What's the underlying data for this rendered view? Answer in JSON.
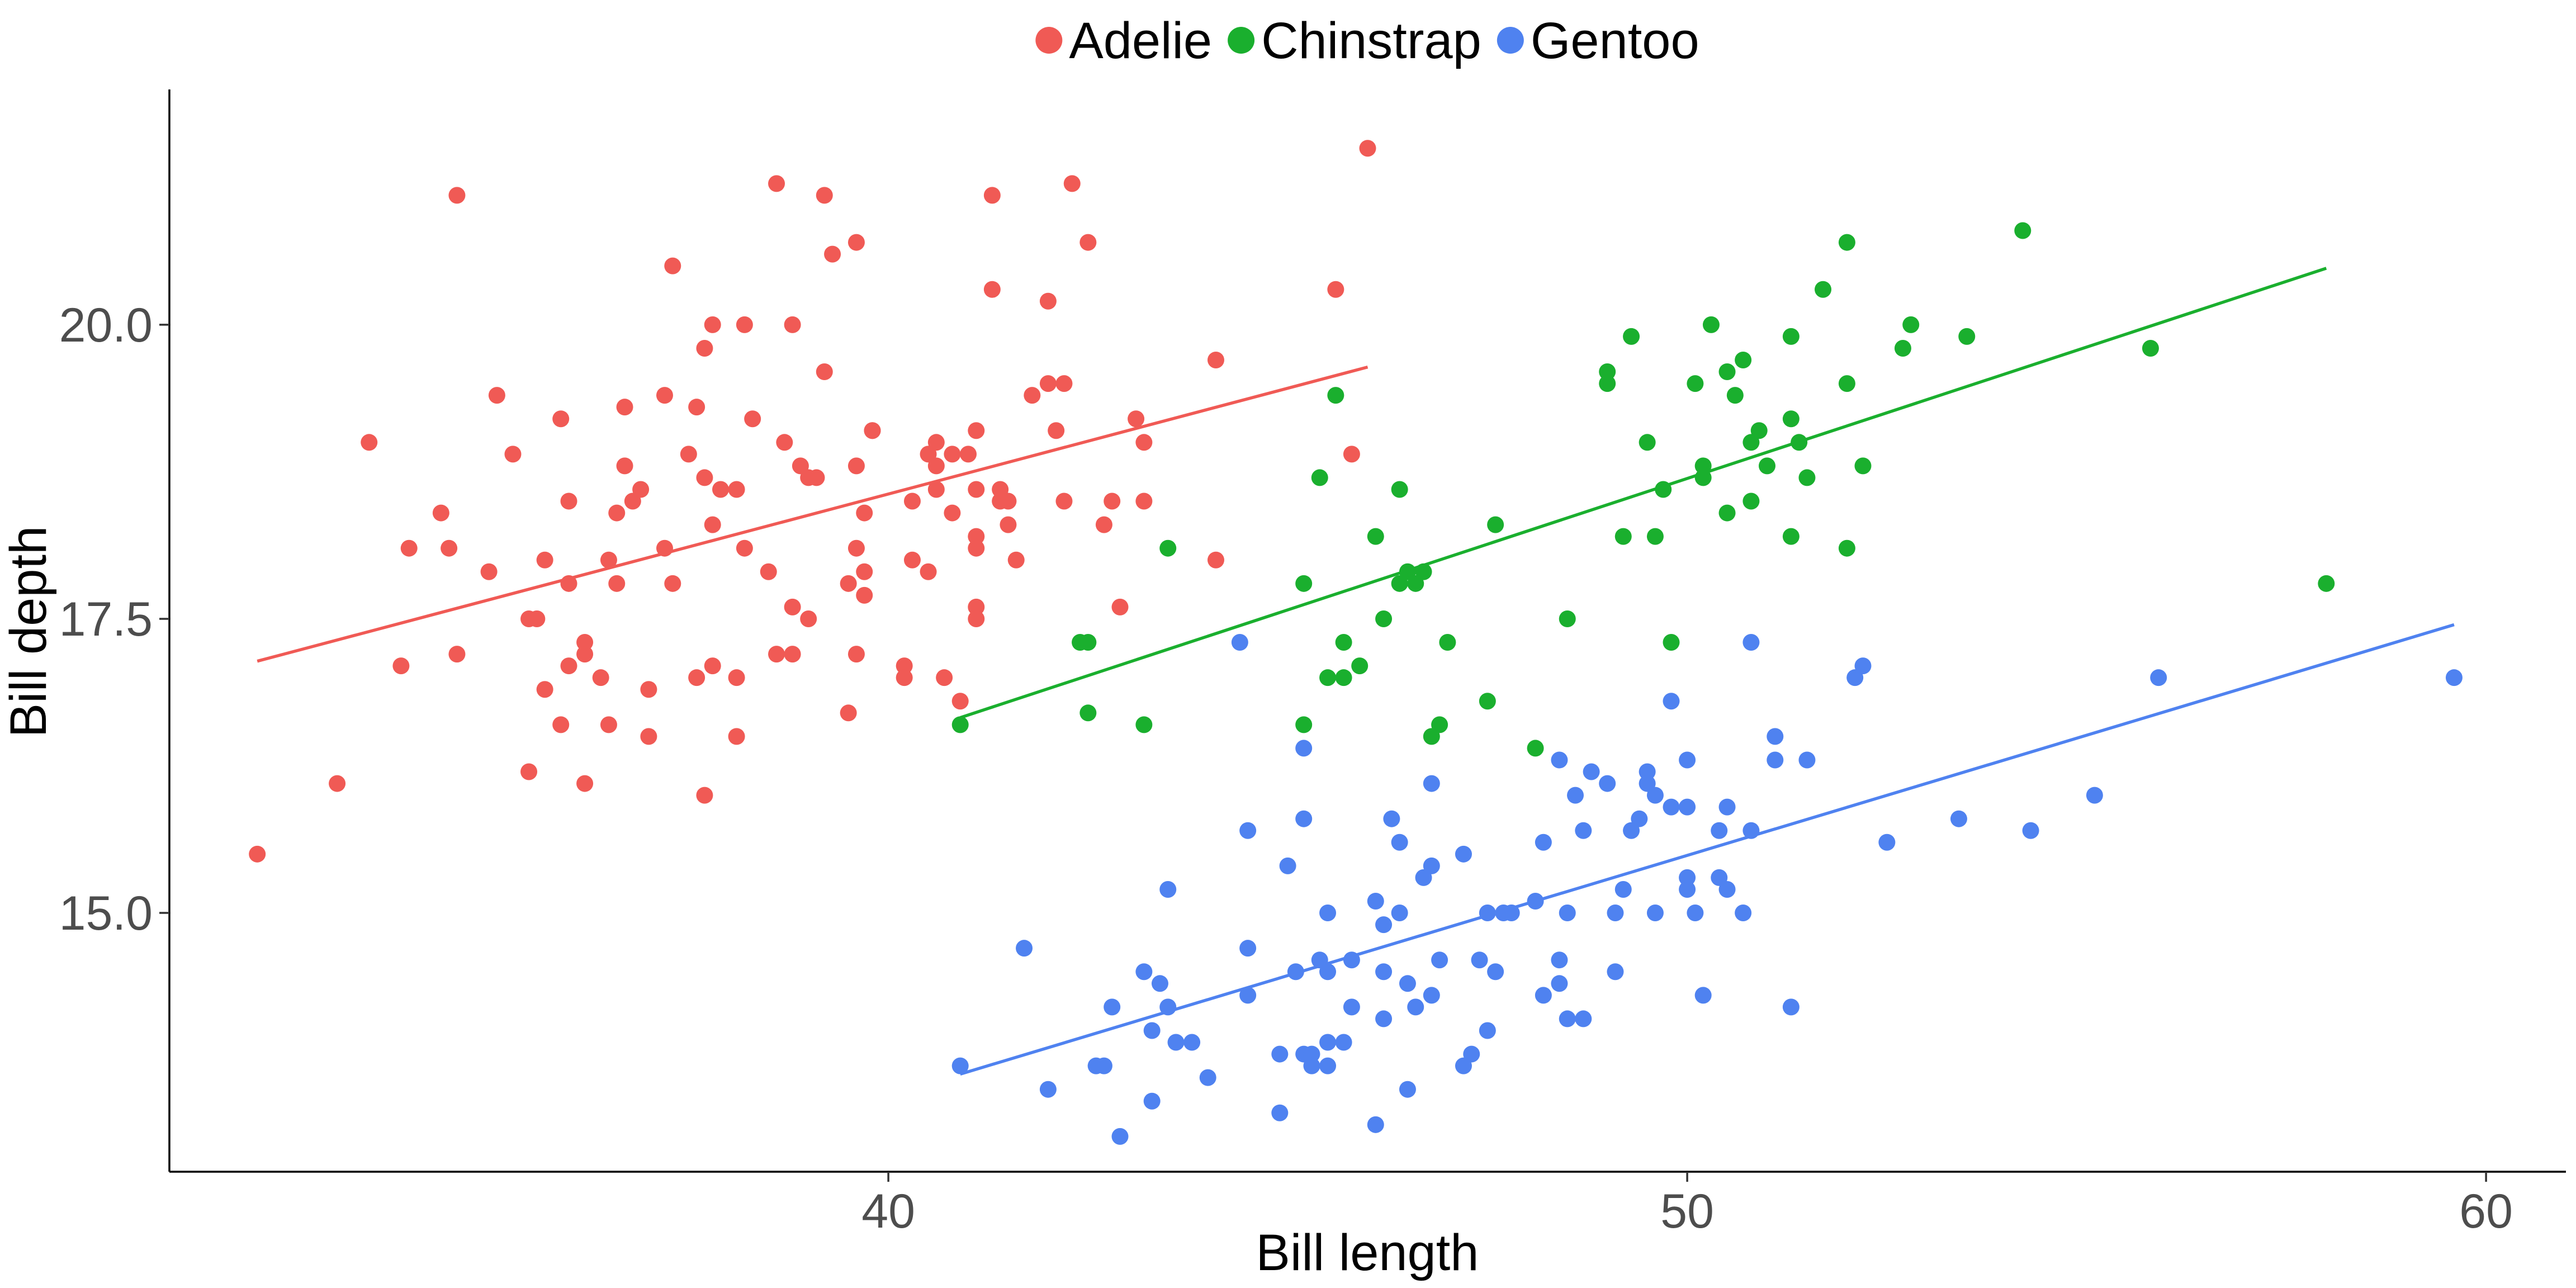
{
  "chart_data": {
    "type": "scatter",
    "title": "",
    "xlabel": "Bill length",
    "ylabel": "Bill depth",
    "xlim": [
      31.0,
      61.0
    ],
    "ylim": [
      12.8,
      22.0
    ],
    "xticks": [
      40,
      50,
      60
    ],
    "yticks": [
      15.0,
      17.5,
      20.0
    ],
    "xtick_labels": [
      "40",
      "50",
      "60"
    ],
    "ytick_labels": [
      "15.0",
      "17.5",
      "20.0"
    ],
    "grid": false,
    "legend_position": "top",
    "series": [
      {
        "name": "Adelie",
        "color": "#F05A55",
        "points": [
          [
            32.1,
            15.5
          ],
          [
            33.1,
            16.1
          ],
          [
            33.5,
            19.0
          ],
          [
            33.9,
            17.1
          ],
          [
            34.0,
            18.1
          ],
          [
            34.4,
            18.4
          ],
          [
            34.5,
            18.1
          ],
          [
            34.6,
            21.1
          ],
          [
            34.6,
            17.2
          ],
          [
            35.0,
            17.9
          ],
          [
            35.1,
            19.4
          ],
          [
            35.3,
            18.9
          ],
          [
            35.5,
            16.2
          ],
          [
            35.5,
            17.5
          ],
          [
            35.6,
            17.5
          ],
          [
            35.7,
            18.0
          ],
          [
            35.7,
            16.9
          ],
          [
            35.9,
            16.6
          ],
          [
            35.9,
            19.2
          ],
          [
            36.0,
            17.1
          ],
          [
            36.0,
            17.8
          ],
          [
            36.0,
            18.5
          ],
          [
            36.2,
            17.2
          ],
          [
            36.2,
            16.1
          ],
          [
            36.2,
            17.3
          ],
          [
            36.4,
            17.0
          ],
          [
            36.5,
            18.0
          ],
          [
            36.5,
            16.6
          ],
          [
            36.6,
            17.8
          ],
          [
            36.6,
            18.4
          ],
          [
            36.7,
            19.3
          ],
          [
            36.7,
            18.8
          ],
          [
            36.8,
            18.5
          ],
          [
            36.9,
            18.6
          ],
          [
            37.0,
            16.9
          ],
          [
            37.0,
            16.5
          ],
          [
            37.2,
            18.1
          ],
          [
            37.2,
            19.4
          ],
          [
            37.3,
            20.5
          ],
          [
            37.3,
            17.8
          ],
          [
            37.5,
            18.9
          ],
          [
            37.6,
            19.3
          ],
          [
            37.6,
            17.0
          ],
          [
            37.7,
            18.7
          ],
          [
            37.7,
            16.0
          ],
          [
            37.7,
            19.8
          ],
          [
            37.8,
            20.0
          ],
          [
            37.8,
            17.1
          ],
          [
            37.8,
            18.3
          ],
          [
            37.9,
            18.6
          ],
          [
            38.1,
            18.6
          ],
          [
            38.1,
            17.0
          ],
          [
            38.1,
            16.5
          ],
          [
            38.2,
            18.1
          ],
          [
            38.2,
            20.0
          ],
          [
            38.3,
            19.2
          ],
          [
            38.5,
            17.9
          ],
          [
            38.6,
            21.2
          ],
          [
            38.6,
            17.2
          ],
          [
            38.7,
            19.0
          ],
          [
            38.8,
            20.0
          ],
          [
            38.8,
            17.2
          ],
          [
            38.8,
            17.6
          ],
          [
            38.9,
            18.8
          ],
          [
            39.0,
            17.5
          ],
          [
            39.0,
            18.7
          ],
          [
            39.1,
            18.7
          ],
          [
            39.2,
            19.6
          ],
          [
            39.2,
            21.1
          ],
          [
            39.3,
            20.6
          ],
          [
            39.5,
            17.8
          ],
          [
            39.5,
            16.7
          ],
          [
            39.6,
            18.8
          ],
          [
            39.6,
            17.2
          ],
          [
            39.6,
            20.7
          ],
          [
            39.6,
            18.1
          ],
          [
            39.7,
            17.7
          ],
          [
            39.7,
            18.4
          ],
          [
            39.7,
            17.9
          ],
          [
            39.8,
            19.1
          ],
          [
            39.8,
            19.1
          ],
          [
            40.2,
            17.1
          ],
          [
            40.2,
            17.0
          ],
          [
            40.3,
            18.0
          ],
          [
            40.3,
            18.5
          ],
          [
            40.5,
            17.9
          ],
          [
            40.5,
            18.9
          ],
          [
            40.6,
            19.0
          ],
          [
            40.6,
            18.6
          ],
          [
            40.6,
            18.8
          ],
          [
            40.7,
            17.0
          ],
          [
            40.8,
            18.4
          ],
          [
            40.8,
            18.9
          ],
          [
            40.9,
            16.8
          ],
          [
            41.0,
            18.9
          ],
          [
            41.1,
            18.2
          ],
          [
            41.1,
            17.6
          ],
          [
            41.1,
            19.1
          ],
          [
            41.1,
            18.6
          ],
          [
            41.1,
            17.5
          ],
          [
            41.1,
            18.1
          ],
          [
            41.3,
            20.3
          ],
          [
            41.3,
            21.1
          ],
          [
            41.4,
            18.6
          ],
          [
            41.4,
            18.5
          ],
          [
            41.5,
            18.5
          ],
          [
            41.5,
            18.3
          ],
          [
            41.6,
            18.0
          ],
          [
            41.8,
            19.4
          ],
          [
            42.0,
            20.2
          ],
          [
            42.0,
            19.5
          ],
          [
            42.1,
            19.1
          ],
          [
            42.2,
            19.5
          ],
          [
            42.2,
            18.5
          ],
          [
            42.3,
            21.2
          ],
          [
            42.5,
            20.7
          ],
          [
            42.7,
            18.3
          ],
          [
            42.8,
            18.5
          ],
          [
            42.9,
            17.6
          ],
          [
            43.1,
            19.2
          ],
          [
            43.2,
            19.0
          ],
          [
            43.2,
            18.5
          ],
          [
            44.1,
            19.7
          ],
          [
            44.1,
            18.0
          ],
          [
            45.6,
            20.3
          ],
          [
            45.8,
            18.9
          ],
          [
            46.0,
            21.5
          ]
        ],
        "fit": [
          [
            32.1,
            17.14
          ],
          [
            46.0,
            19.64
          ]
        ]
      },
      {
        "name": "Chinstrap",
        "color": "#1AAF2E",
        "points": [
          [
            40.9,
            16.6
          ],
          [
            42.4,
            17.3
          ],
          [
            42.5,
            16.7
          ],
          [
            42.5,
            17.3
          ],
          [
            43.2,
            16.6
          ],
          [
            43.5,
            18.1
          ],
          [
            45.2,
            17.8
          ],
          [
            45.2,
            16.6
          ],
          [
            45.4,
            18.7
          ],
          [
            45.5,
            17.0
          ],
          [
            45.6,
            19.4
          ],
          [
            45.7,
            17.3
          ],
          [
            45.7,
            17.0
          ],
          [
            45.9,
            17.1
          ],
          [
            46.1,
            18.2
          ],
          [
            46.2,
            17.5
          ],
          [
            46.4,
            18.6
          ],
          [
            46.4,
            17.8
          ],
          [
            46.5,
            17.9
          ],
          [
            46.6,
            17.8
          ],
          [
            46.7,
            17.9
          ],
          [
            46.8,
            16.5
          ],
          [
            46.9,
            16.6
          ],
          [
            47.0,
            17.3
          ],
          [
            47.5,
            16.8
          ],
          [
            47.6,
            18.3
          ],
          [
            48.1,
            16.4
          ],
          [
            48.5,
            17.5
          ],
          [
            49.0,
            19.5
          ],
          [
            49.0,
            19.6
          ],
          [
            49.2,
            18.2
          ],
          [
            49.3,
            19.9
          ],
          [
            49.5,
            19.0
          ],
          [
            49.6,
            18.2
          ],
          [
            49.7,
            18.6
          ],
          [
            49.8,
            17.3
          ],
          [
            50.1,
            19.5
          ],
          [
            50.2,
            18.8
          ],
          [
            50.2,
            18.7
          ],
          [
            50.3,
            20.0
          ],
          [
            50.5,
            18.4
          ],
          [
            50.5,
            19.6
          ],
          [
            50.6,
            19.4
          ],
          [
            50.7,
            19.7
          ],
          [
            50.8,
            18.5
          ],
          [
            50.8,
            19.0
          ],
          [
            50.9,
            19.1
          ],
          [
            51.0,
            18.8
          ],
          [
            51.3,
            18.2
          ],
          [
            51.3,
            19.9
          ],
          [
            51.3,
            19.2
          ],
          [
            51.4,
            19.0
          ],
          [
            51.5,
            18.7
          ],
          [
            51.7,
            20.3
          ],
          [
            52.0,
            18.1
          ],
          [
            52.0,
            19.5
          ],
          [
            52.0,
            20.7
          ],
          [
            52.2,
            18.8
          ],
          [
            52.7,
            19.8
          ],
          [
            52.8,
            20.0
          ],
          [
            53.5,
            19.9
          ],
          [
            54.2,
            20.8
          ],
          [
            55.8,
            19.8
          ],
          [
            58.0,
            17.8
          ]
        ],
        "fit": [
          [
            40.9,
            16.66
          ],
          [
            58.0,
            20.48
          ]
        ]
      },
      {
        "name": "Gentoo",
        "color": "#4F82F0",
        "points": [
          [
            40.9,
            13.7
          ],
          [
            41.7,
            14.7
          ],
          [
            42.0,
            13.5
          ],
          [
            42.6,
            13.7
          ],
          [
            42.7,
            13.7
          ],
          [
            42.8,
            14.2
          ],
          [
            42.9,
            13.1
          ],
          [
            43.2,
            14.5
          ],
          [
            43.3,
            14.0
          ],
          [
            43.3,
            13.4
          ],
          [
            43.4,
            14.4
          ],
          [
            43.5,
            14.2
          ],
          [
            43.5,
            15.2
          ],
          [
            43.6,
            13.9
          ],
          [
            43.8,
            13.9
          ],
          [
            44.0,
            13.6
          ],
          [
            44.4,
            17.3
          ],
          [
            44.5,
            14.7
          ],
          [
            44.5,
            15.7
          ],
          [
            44.5,
            14.3
          ],
          [
            44.9,
            13.8
          ],
          [
            44.9,
            13.3
          ],
          [
            45.0,
            15.4
          ],
          [
            45.1,
            14.5
          ],
          [
            45.2,
            13.8
          ],
          [
            45.2,
            15.8
          ],
          [
            45.2,
            16.4
          ],
          [
            45.3,
            13.8
          ],
          [
            45.3,
            13.7
          ],
          [
            45.4,
            14.6
          ],
          [
            45.5,
            15.0
          ],
          [
            45.5,
            13.7
          ],
          [
            45.5,
            13.9
          ],
          [
            45.5,
            14.5
          ],
          [
            45.7,
            13.9
          ],
          [
            45.8,
            14.2
          ],
          [
            45.8,
            14.6
          ],
          [
            46.1,
            15.1
          ],
          [
            46.1,
            13.2
          ],
          [
            46.2,
            14.5
          ],
          [
            46.2,
            14.9
          ],
          [
            46.2,
            14.1
          ],
          [
            46.3,
            15.8
          ],
          [
            46.4,
            15.0
          ],
          [
            46.4,
            15.6
          ],
          [
            46.5,
            14.4
          ],
          [
            46.5,
            13.5
          ],
          [
            46.6,
            14.2
          ],
          [
            46.7,
            15.3
          ],
          [
            46.8,
            15.4
          ],
          [
            46.8,
            14.3
          ],
          [
            46.8,
            16.1
          ],
          [
            46.9,
            14.6
          ],
          [
            47.2,
            13.7
          ],
          [
            47.2,
            15.5
          ],
          [
            47.3,
            13.8
          ],
          [
            47.4,
            14.6
          ],
          [
            47.5,
            14.0
          ],
          [
            47.5,
            15.0
          ],
          [
            47.6,
            14.5
          ],
          [
            47.7,
            15.0
          ],
          [
            47.8,
            15.0
          ],
          [
            48.1,
            15.1
          ],
          [
            48.2,
            14.3
          ],
          [
            48.2,
            15.6
          ],
          [
            48.4,
            14.6
          ],
          [
            48.4,
            16.3
          ],
          [
            48.4,
            14.4
          ],
          [
            48.5,
            14.1
          ],
          [
            48.5,
            15.0
          ],
          [
            48.6,
            16.0
          ],
          [
            48.7,
            14.1
          ],
          [
            48.7,
            15.7
          ],
          [
            48.8,
            16.2
          ],
          [
            49.0,
            16.1
          ],
          [
            49.1,
            14.5
          ],
          [
            49.1,
            15.0
          ],
          [
            49.2,
            15.2
          ],
          [
            49.3,
            15.7
          ],
          [
            49.4,
            15.8
          ],
          [
            49.5,
            16.2
          ],
          [
            49.5,
            16.1
          ],
          [
            49.6,
            15.0
          ],
          [
            49.6,
            16.0
          ],
          [
            49.8,
            15.9
          ],
          [
            49.8,
            16.8
          ],
          [
            50.0,
            15.2
          ],
          [
            50.0,
            15.3
          ],
          [
            50.0,
            15.9
          ],
          [
            50.0,
            16.3
          ],
          [
            50.1,
            15.0
          ],
          [
            50.2,
            14.3
          ],
          [
            50.4,
            15.3
          ],
          [
            50.4,
            15.7
          ],
          [
            50.5,
            15.9
          ],
          [
            50.5,
            15.2
          ],
          [
            50.7,
            15.0
          ],
          [
            50.8,
            15.7
          ],
          [
            50.8,
            17.3
          ],
          [
            51.1,
            16.3
          ],
          [
            51.1,
            16.5
          ],
          [
            51.3,
            14.2
          ],
          [
            51.5,
            16.3
          ],
          [
            52.1,
            17.0
          ],
          [
            52.2,
            17.1
          ],
          [
            52.5,
            15.6
          ],
          [
            53.4,
            15.8
          ],
          [
            54.3,
            15.7
          ],
          [
            55.1,
            16.0
          ],
          [
            55.9,
            17.0
          ],
          [
            59.6,
            17.0
          ]
        ],
        "fit": [
          [
            40.9,
            13.63
          ],
          [
            59.6,
            17.45
          ]
        ]
      }
    ]
  }
}
